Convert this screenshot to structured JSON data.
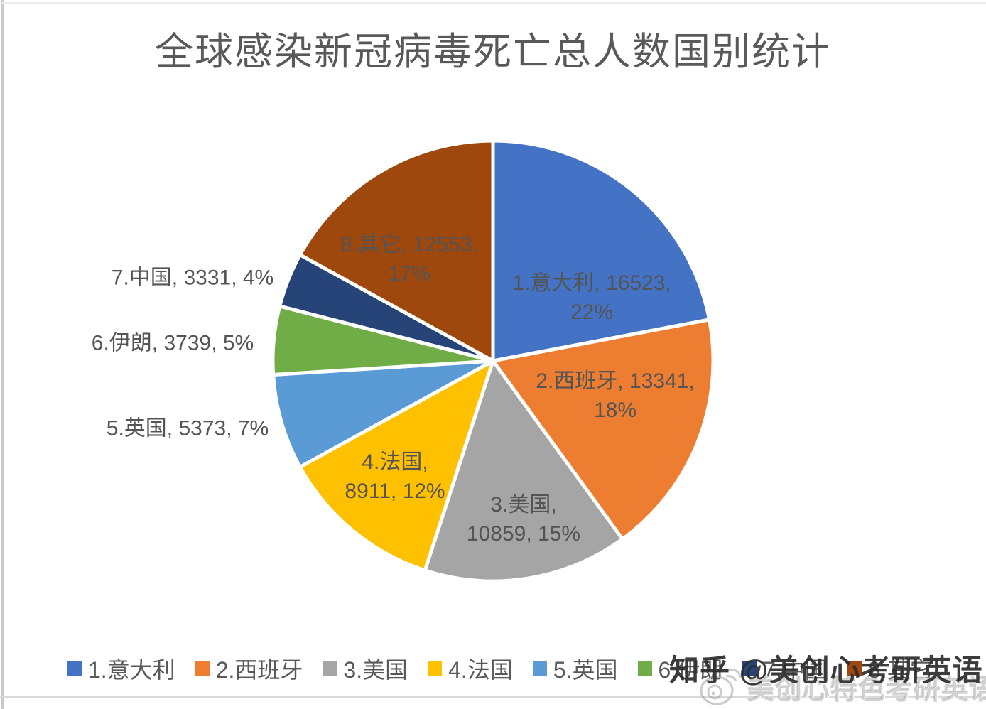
{
  "title": "全球感染新冠病毒死亡总人数国别统计",
  "chart_data": {
    "type": "pie",
    "title": "全球感染新冠病毒死亡总人数国别统计",
    "direction": "clockwise",
    "start_angle_deg": 0,
    "legend_position": "bottom",
    "label_format": "name, value, percent",
    "slices": [
      {
        "name": "1.意大利",
        "country": "意大利",
        "value": 16523,
        "pct": 22,
        "color": "#4472C4",
        "label_line1": "1.意大利, 16523,",
        "label_line2": "22%",
        "label_placement": "inside"
      },
      {
        "name": "2.西班牙",
        "country": "西班牙",
        "value": 13341,
        "pct": 18,
        "color": "#ED7D31",
        "label_line1": "2.西班牙, 13341,",
        "label_line2": "18%",
        "label_placement": "inside"
      },
      {
        "name": "3.美国",
        "country": "美国",
        "value": 10859,
        "pct": 15,
        "color": "#A5A5A5",
        "label_line1": "3.美国,",
        "label_line2": "10859, 15%",
        "label_placement": "inside"
      },
      {
        "name": "4.法国",
        "country": "法国",
        "value": 8911,
        "pct": 12,
        "color": "#FFC000",
        "label_line1": "4.法国,",
        "label_line2": "8911, 12%",
        "label_placement": "inside"
      },
      {
        "name": "5.英国",
        "country": "英国",
        "value": 5373,
        "pct": 7,
        "color": "#5B9BD5",
        "label_line1": "5.英国, 5373, 7%",
        "label_placement": "outside"
      },
      {
        "name": "6.伊朗",
        "country": "伊朗",
        "value": 3739,
        "pct": 5,
        "color": "#70AD47",
        "label_line1": "6.伊朗, 3739, 5%",
        "label_placement": "outside"
      },
      {
        "name": "7.中国",
        "country": "中国",
        "value": 3331,
        "pct": 4,
        "color": "#264478",
        "label_line1": "7.中国, 3331, 4%",
        "label_placement": "outside"
      },
      {
        "name": "8.其它",
        "country": "其它",
        "value": 12553,
        "pct": 17,
        "color": "#9E480E",
        "label_line1": "8.其它, 12553,",
        "label_line2": "17%",
        "label_placement": "inside"
      }
    ]
  },
  "watermarks": {
    "zhihu": "知乎 @美创心考研英语",
    "weibo": "美创心特色考研英语"
  }
}
